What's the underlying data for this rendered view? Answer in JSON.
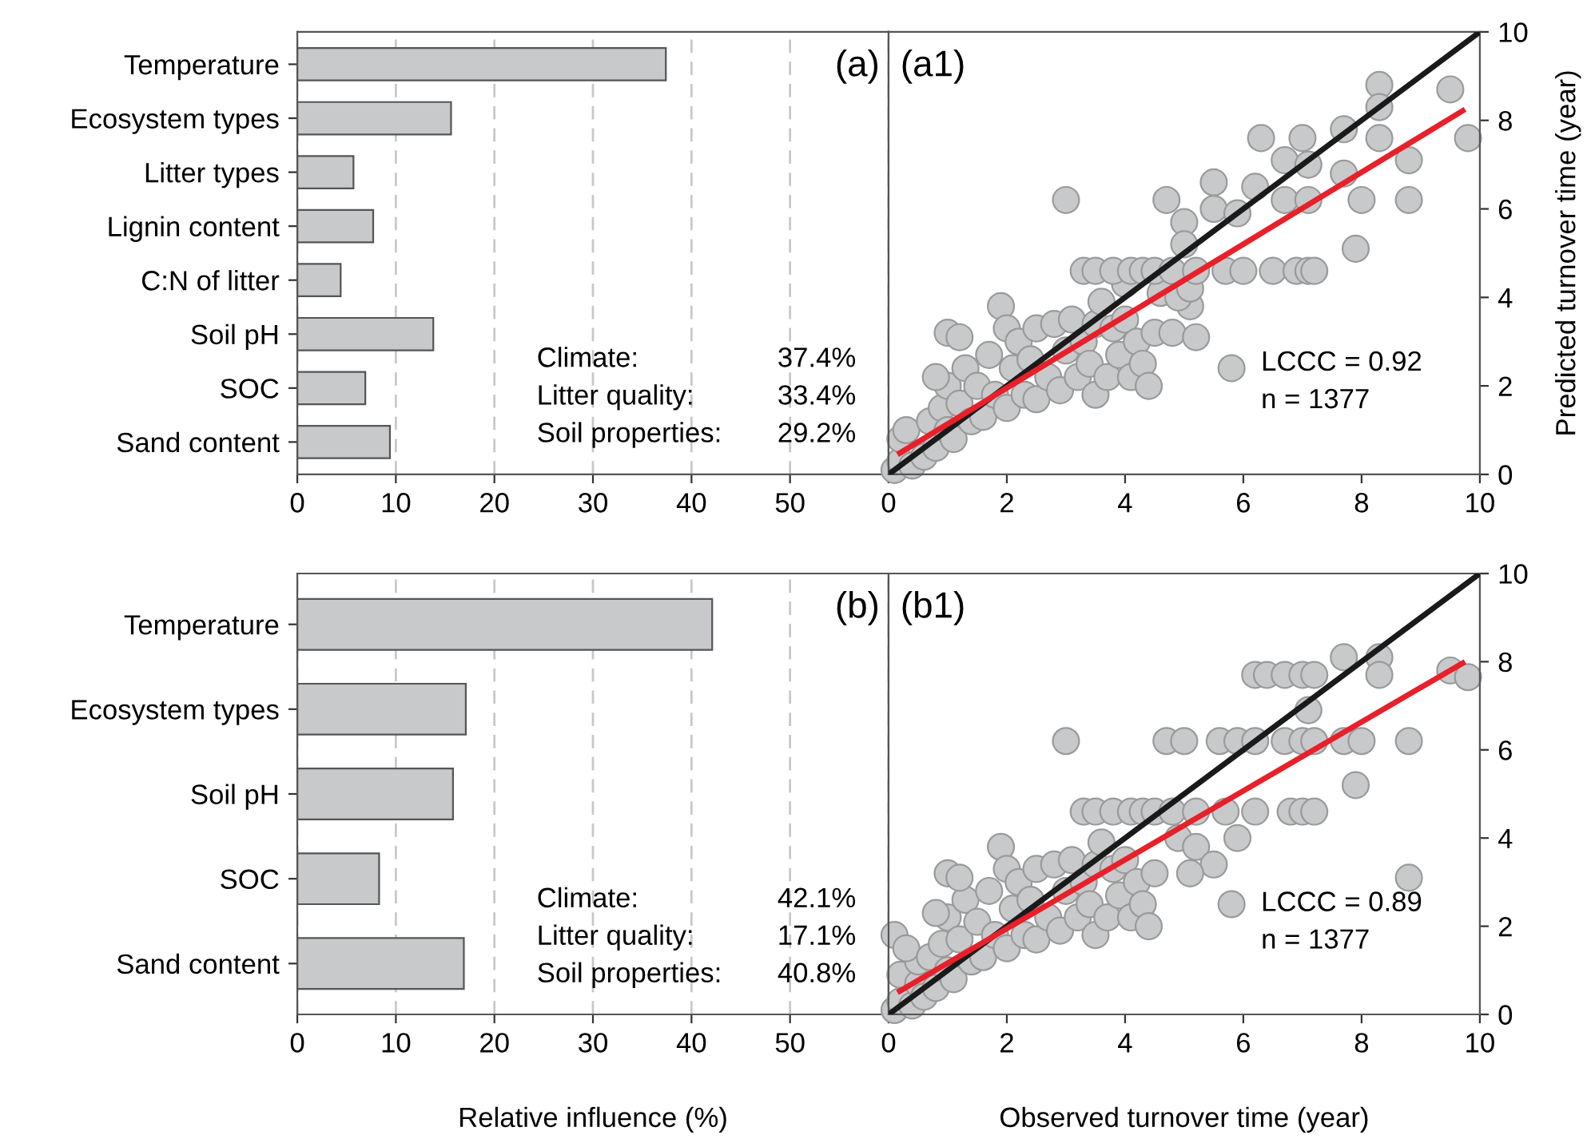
{
  "chart_data": [
    {
      "type": "bar",
      "orientation": "horizontal",
      "categories": [
        "Temperature",
        "Ecosystem types",
        "Litter types",
        "Lignin content",
        "C:N of litter",
        "Soil pH",
        "SOC",
        "Sand content"
      ],
      "values": [
        37.4,
        15.6,
        5.7,
        7.7,
        4.4,
        13.8,
        6.9,
        9.4
      ],
      "color": "#c8c9cb",
      "xlim": [
        0,
        60
      ],
      "xticks": [
        0,
        10,
        20,
        30,
        40,
        50,
        {
          "value": 60,
          "label": null
        }
      ],
      "grid": "x",
      "annotations": [
        "(a)",
        "Climate:",
        "37.4%",
        "Litter quality:",
        "33.4%",
        "Soil properties:",
        "29.2%"
      ]
    },
    {
      "type": "scatter",
      "xlim": [
        0,
        10
      ],
      "ylim": [
        0,
        10
      ],
      "xticks": [
        0,
        2,
        4,
        6,
        8,
        10
      ],
      "yticks": [
        0,
        2,
        4,
        6,
        8,
        10
      ],
      "ylabel": "Predicted turnover time (year)",
      "annotations": [
        "(a1)",
        "LCCC = 0.92",
        "n = 1377"
      ],
      "series": [
        {
          "type": "scatter",
          "marker": "circle",
          "color": "#c8c9cb",
          "x": [
            0.1,
            0.2,
            0.2,
            0.4,
            0.3,
            0.6,
            0.7,
            0.8,
            0.9,
            1.0,
            1.0,
            1.1,
            1.2,
            1.3,
            1.4,
            1.5,
            1.0,
            1.2,
            0.8,
            1.6,
            1.7,
            1.8,
            1.9,
            2.0,
            2.0,
            2.1,
            2.2,
            2.3,
            2.4,
            2.5,
            2.5,
            2.7,
            2.8,
            2.9,
            3.0,
            3.1,
            3.2,
            3.3,
            3.4,
            3.5,
            3.5,
            3.6,
            3.7,
            3.8,
            3.9,
            4.0,
            4.1,
            4.2,
            4.3,
            4.4,
            4.5,
            4.6,
            4.8,
            5.2,
            5.1,
            4.9,
            4.0,
            5.1,
            3.3,
            3.5,
            3.8,
            4.1,
            4.3,
            4.5,
            4.8,
            5.2,
            5.7,
            6.0,
            6.5,
            6.9,
            7.1,
            7.2,
            3.0,
            4.7,
            5.5,
            5.5,
            5.9,
            6.3,
            7.0,
            6.7,
            7.7,
            8.3,
            8.3,
            8.3,
            9.5,
            9.8,
            8.8,
            7.7,
            8.8,
            7.9,
            8.0,
            7.1,
            6.7,
            7.1,
            6.2,
            5.8,
            5.0,
            5.0
          ],
          "values": [
            0.1,
            0.3,
            0.8,
            0.2,
            1.0,
            0.4,
            1.2,
            0.6,
            1.5,
            1.0,
            2.0,
            0.8,
            1.6,
            2.4,
            1.2,
            2.0,
            3.2,
            3.1,
            2.2,
            1.3,
            2.7,
            1.8,
            3.8,
            3.3,
            1.5,
            2.4,
            3.0,
            1.8,
            2.6,
            1.7,
            3.3,
            2.2,
            3.4,
            1.9,
            2.8,
            3.5,
            2.2,
            3.0,
            2.5,
            3.4,
            1.8,
            3.9,
            2.2,
            3.3,
            2.7,
            3.5,
            2.2,
            3.0,
            2.5,
            2.0,
            3.2,
            4.1,
            3.2,
            3.1,
            3.8,
            4.0,
            4.3,
            4.2,
            4.6,
            4.6,
            4.6,
            4.6,
            4.6,
            4.6,
            4.6,
            4.6,
            4.6,
            4.6,
            4.6,
            4.6,
            4.6,
            4.6,
            6.2,
            6.2,
            6.6,
            6.0,
            5.9,
            7.6,
            7.6,
            7.1,
            7.8,
            8.8,
            8.3,
            7.6,
            8.7,
            7.6,
            7.1,
            6.8,
            6.2,
            5.1,
            6.2,
            7.0,
            6.2,
            6.2,
            6.5,
            2.4,
            5.7,
            5.2
          ]
        },
        {
          "type": "line",
          "marker": "none",
          "color": "#1a1a1a",
          "x": [
            0,
            10
          ],
          "values": [
            0,
            10
          ]
        },
        {
          "type": "line",
          "marker": "none",
          "color": "#e8202a",
          "x": [
            0.15,
            9.75
          ],
          "values": [
            0.45,
            8.25
          ]
        }
      ]
    },
    {
      "type": "bar",
      "orientation": "horizontal",
      "categories": [
        "Temperature",
        "Ecosystem types",
        "Soil pH",
        "SOC",
        "Sand content"
      ],
      "values": [
        42.1,
        17.1,
        15.8,
        8.3,
        16.9
      ],
      "color": "#c8c9cb",
      "xlim": [
        0,
        60
      ],
      "xticks": [
        0,
        10,
        20,
        30,
        40,
        50,
        {
          "value": 60,
          "label": null
        }
      ],
      "grid": "x",
      "xlabel": "Relative influence (%)",
      "annotations": [
        "(b)",
        "Climate:",
        "42.1%",
        "Litter quality:",
        "17.1%",
        "Soil properties:",
        "40.8%"
      ]
    },
    {
      "type": "scatter",
      "xlim": [
        0,
        10
      ],
      "ylim": [
        0,
        10
      ],
      "xticks": [
        0,
        2,
        4,
        6,
        8,
        10
      ],
      "yticks": [
        0,
        2,
        4,
        6,
        8,
        10
      ],
      "xlabel": "Observed turnover time (year)",
      "annotations": [
        "(b1)",
        "LCCC = 0.89",
        "n = 1377"
      ],
      "series": [
        {
          "type": "scatter",
          "marker": "circle",
          "color": "#c8c9cb",
          "x": [
            0.1,
            0.1,
            0.2,
            0.2,
            0.4,
            0.5,
            0.5,
            0.3,
            0.6,
            0.7,
            0.8,
            0.9,
            1.0,
            1.0,
            1.1,
            1.2,
            1.3,
            1.4,
            1.5,
            1.0,
            1.2,
            0.8,
            1.6,
            1.7,
            1.8,
            1.9,
            2.0,
            2.0,
            2.1,
            2.2,
            2.3,
            2.4,
            2.5,
            2.5,
            2.7,
            2.8,
            2.9,
            3.0,
            3.1,
            3.2,
            3.3,
            3.4,
            3.5,
            3.5,
            3.6,
            3.7,
            3.8,
            3.9,
            4.0,
            4.1,
            4.2,
            4.3,
            4.4,
            4.5,
            4.9,
            5.2,
            5.5,
            5.1,
            5.9,
            3.3,
            3.5,
            3.8,
            4.1,
            4.3,
            4.5,
            4.8,
            5.2,
            5.7,
            6.2,
            6.8,
            7.0,
            7.2,
            3.0,
            4.7,
            5.0,
            5.6,
            5.9,
            6.2,
            6.7,
            7.0,
            7.2,
            7.7,
            8.0,
            8.8,
            6.2,
            6.4,
            6.7,
            7.0,
            7.2,
            7.7,
            8.3,
            8.3,
            9.5,
            9.8,
            7.1,
            7.9,
            8.8,
            5.8
          ],
          "values": [
            0.1,
            1.8,
            0.3,
            0.9,
            0.2,
            0.7,
            1.2,
            1.5,
            0.4,
            1.3,
            0.6,
            1.6,
            1.0,
            2.2,
            0.8,
            1.7,
            2.6,
            1.2,
            2.1,
            3.2,
            3.1,
            2.3,
            1.3,
            2.8,
            1.8,
            3.8,
            3.3,
            1.5,
            2.4,
            3.0,
            1.8,
            2.6,
            1.7,
            3.3,
            2.2,
            3.4,
            1.9,
            2.8,
            3.5,
            2.2,
            3.0,
            2.5,
            3.4,
            1.8,
            3.9,
            2.2,
            3.3,
            2.7,
            3.5,
            2.2,
            3.0,
            2.5,
            2.0,
            3.2,
            4.0,
            3.8,
            3.4,
            3.2,
            4.0,
            4.6,
            4.6,
            4.6,
            4.6,
            4.6,
            4.6,
            4.6,
            4.6,
            4.6,
            4.6,
            4.6,
            4.6,
            4.6,
            6.2,
            6.2,
            6.2,
            6.2,
            6.2,
            6.2,
            6.2,
            6.2,
            6.2,
            6.2,
            6.2,
            6.2,
            7.7,
            7.7,
            7.7,
            7.7,
            7.7,
            8.1,
            8.1,
            7.7,
            7.8,
            7.65,
            6.9,
            5.2,
            3.1,
            2.5
          ]
        },
        {
          "type": "line",
          "marker": "none",
          "color": "#1a1a1a",
          "x": [
            0,
            10
          ],
          "values": [
            0,
            10
          ]
        },
        {
          "type": "line",
          "marker": "none",
          "color": "#e8202a",
          "x": [
            0.15,
            9.75
          ],
          "values": [
            0.5,
            8.0
          ]
        }
      ]
    }
  ]
}
